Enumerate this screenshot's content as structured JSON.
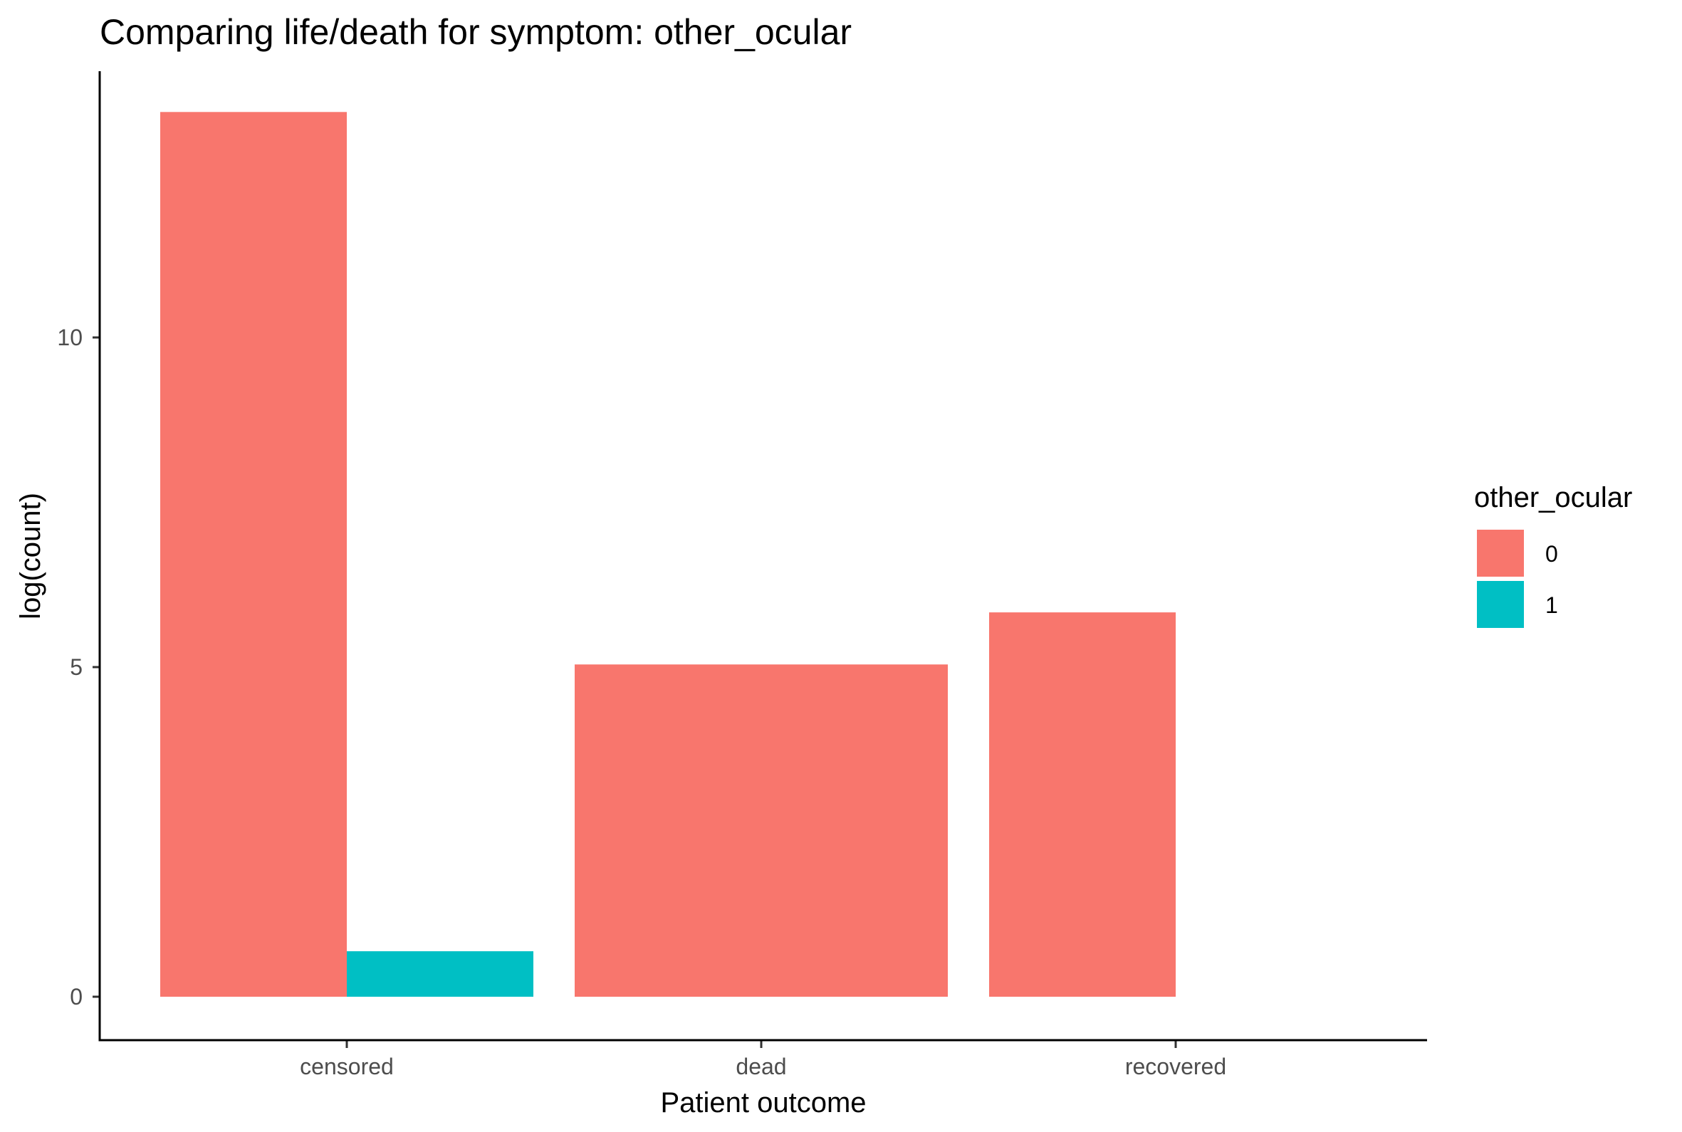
{
  "chart_data": {
    "type": "bar",
    "title": "Comparing life/death for symptom: other_ocular",
    "xlabel": "Patient outcome",
    "ylabel": "log(count)",
    "categories": [
      "censored",
      "dead",
      "recovered"
    ],
    "ylim": [
      -0.65,
      14.1
    ],
    "yticks": [
      0,
      5,
      10
    ],
    "grid": false,
    "legend": {
      "title": "other_ocular",
      "placement": "right",
      "entries": [
        {
          "label": "0",
          "color": "#F8766D"
        },
        {
          "label": "1",
          "color": "#00BFC4"
        }
      ]
    },
    "series": [
      {
        "name": "0",
        "color": "#F8766D",
        "values": [
          13.42,
          5.04,
          5.83
        ]
      },
      {
        "name": "1",
        "color": "#00BFC4",
        "values": [
          0.69,
          null,
          null
        ]
      }
    ]
  }
}
